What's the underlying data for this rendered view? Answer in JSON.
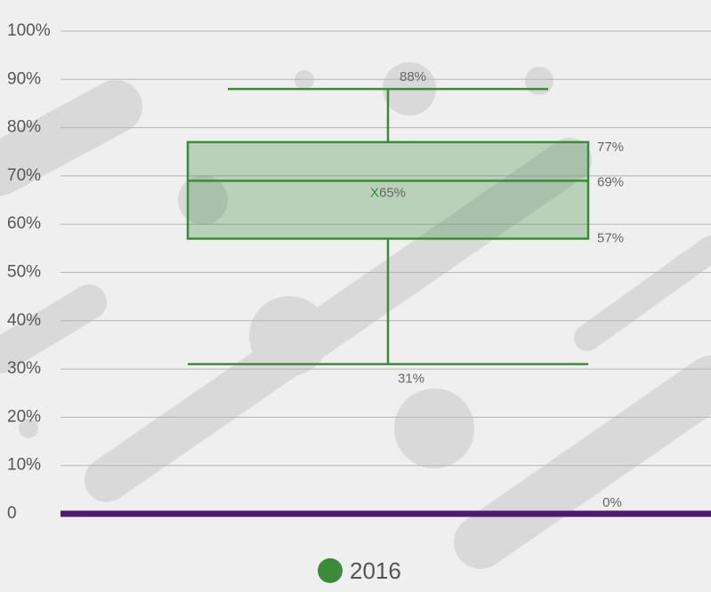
{
  "chart_data": {
    "type": "box",
    "ylim": [
      0,
      100
    ],
    "yticks": [
      0,
      {
        "value": 10,
        "label": "10%"
      },
      {
        "value": 20,
        "label": "20%"
      },
      {
        "value": 30,
        "label": "30%"
      },
      {
        "value": 40,
        "label": "40%"
      },
      {
        "value": 50,
        "label": "50%"
      },
      {
        "value": 60,
        "label": "60%"
      },
      {
        "value": 70,
        "label": "70%"
      },
      {
        "value": 80,
        "label": "80%"
      },
      {
        "value": 90,
        "label": "90%"
      },
      {
        "value": 100,
        "label": "100%"
      }
    ],
    "grid": true,
    "series": [
      {
        "name": "2016",
        "color": "#3b8b3b",
        "whisker_low": 31,
        "q1": 57,
        "median": 69,
        "q3": 77,
        "whisker_high": 88,
        "mean": 65,
        "mean_marker": "X",
        "value_labels": {
          "whisker_low": "31%",
          "q1": "57%",
          "median": "69%",
          "q3": "77%",
          "whisker_high": "88%",
          "mean": "65%"
        }
      }
    ],
    "baseline": {
      "value": 0,
      "label": "0%",
      "color": "#4b1d6e"
    }
  }
}
